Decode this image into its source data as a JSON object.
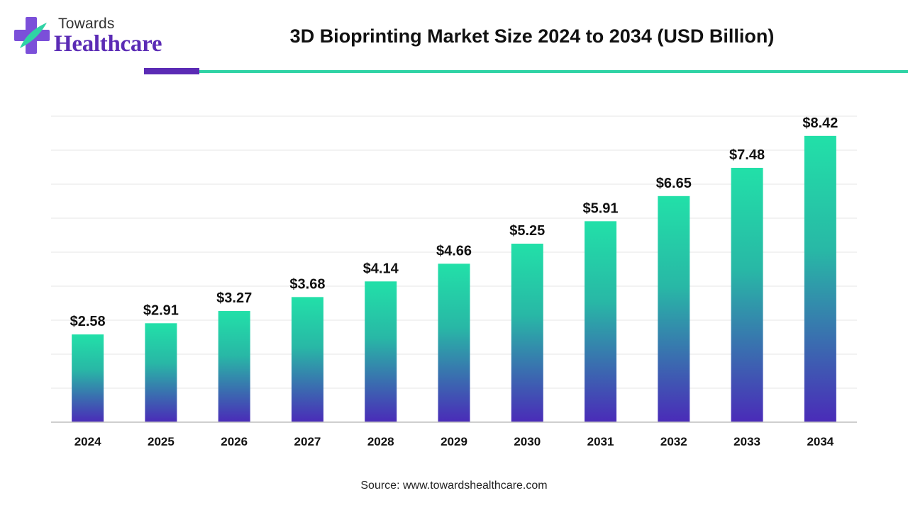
{
  "brand": {
    "top_text": "Towards",
    "main_text": "Healthcare",
    "logo_icon": "medical-cross-icon"
  },
  "colors": {
    "brand_purple": "#5b2bb5",
    "accent_teal": "#2fd3a5",
    "bar_top": "#22e0a8",
    "bar_bottom": "#4a2bb8",
    "grid": "#e6e6e6"
  },
  "chart_data": {
    "type": "bar",
    "title": "3D Bioprinting Market Size 2024 to 2034 (USD Billion)",
    "categories": [
      "2024",
      "2025",
      "2026",
      "2027",
      "2028",
      "2029",
      "2030",
      "2031",
      "2032",
      "2033",
      "2034"
    ],
    "values": [
      2.58,
      2.91,
      3.27,
      3.68,
      4.14,
      4.66,
      5.25,
      5.91,
      6.65,
      7.48,
      8.42
    ],
    "value_labels": [
      "$2.58",
      "$2.91",
      "$3.27",
      "$3.68",
      "$4.14",
      "$4.66",
      "$5.25",
      "$5.91",
      "$6.65",
      "$7.48",
      "$8.42"
    ],
    "xlabel": "",
    "ylabel": "",
    "ylim": [
      0,
      9
    ],
    "grid": true,
    "legend": "none"
  },
  "source": "Source: www.towardshealthcare.com"
}
